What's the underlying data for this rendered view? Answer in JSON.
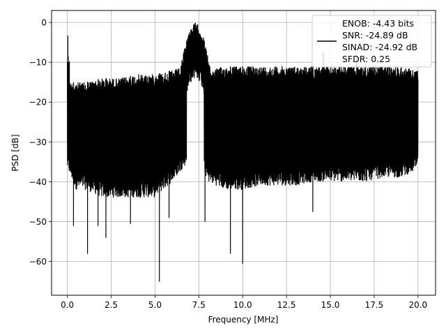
{
  "chart_data": {
    "type": "line",
    "xlabel": "Frequency [MHz]",
    "ylabel": "PSD [dB]",
    "xlim": [
      -0.9,
      21.0
    ],
    "ylim": [
      -68.5,
      3.0
    ],
    "xticks": [
      0.0,
      2.5,
      5.0,
      7.5,
      10.0,
      12.5,
      15.0,
      17.5,
      20.0
    ],
    "xtick_labels": [
      "0.0",
      "2.5",
      "5.0",
      "7.5",
      "10.0",
      "12.5",
      "15.0",
      "17.5",
      "20.0"
    ],
    "yticks": [
      0,
      -10,
      -20,
      -30,
      -40,
      -50,
      -60
    ],
    "ytick_labels": [
      "0",
      "−10",
      "−20",
      "−30",
      "−40",
      "−50",
      "−60"
    ],
    "grid": true,
    "legend_position": "top-right",
    "line_color": "#000000",
    "legend_entries": [
      "ENOB: -4.43 bits",
      "SNR: -24.89 dB",
      "SINAD: -24.92 dB",
      "SFDR: 0.25"
    ],
    "series": [
      {
        "x_range": [
          0.0,
          20.0
        ],
        "noise_band": [
          {
            "x": 0.0,
            "top": -15,
            "bottom": -35
          },
          {
            "x": 0.5,
            "top": -15,
            "bottom": -40
          },
          {
            "x": 1.0,
            "top": -15,
            "bottom": -40
          },
          {
            "x": 2.0,
            "top": -14,
            "bottom": -42
          },
          {
            "x": 3.0,
            "top": -14,
            "bottom": -42
          },
          {
            "x": 4.0,
            "top": -13,
            "bottom": -42
          },
          {
            "x": 5.0,
            "top": -13,
            "bottom": -42
          },
          {
            "x": 6.0,
            "top": -12,
            "bottom": -38
          },
          {
            "x": 6.7,
            "top": -11,
            "bottom": -34
          },
          {
            "x": 7.5,
            "top": -10,
            "bottom": -31
          },
          {
            "x": 8.0,
            "top": -12,
            "bottom": -38
          },
          {
            "x": 9.0,
            "top": -11,
            "bottom": -40
          },
          {
            "x": 10.0,
            "top": -11,
            "bottom": -40
          },
          {
            "x": 11.0,
            "top": -11,
            "bottom": -39
          },
          {
            "x": 12.0,
            "top": -11,
            "bottom": -39
          },
          {
            "x": 13.0,
            "top": -11,
            "bottom": -39
          },
          {
            "x": 14.0,
            "top": -11,
            "bottom": -38
          },
          {
            "x": 15.0,
            "top": -11,
            "bottom": -38
          },
          {
            "x": 16.0,
            "top": -11,
            "bottom": -38
          },
          {
            "x": 17.0,
            "top": -11,
            "bottom": -38
          },
          {
            "x": 18.0,
            "top": -11,
            "bottom": -37
          },
          {
            "x": 19.0,
            "top": -11,
            "bottom": -37
          },
          {
            "x": 20.0,
            "top": -12,
            "bottom": -35
          }
        ],
        "peak": {
          "x": 7.3,
          "y": -0.2
        },
        "dc_spike": {
          "x": 0.03,
          "y": -3.3
        },
        "deep_notches": [
          {
            "x": 0.35,
            "y": -51
          },
          {
            "x": 1.15,
            "y": -58
          },
          {
            "x": 1.75,
            "y": -51
          },
          {
            "x": 2.2,
            "y": -54
          },
          {
            "x": 3.6,
            "y": -50.5
          },
          {
            "x": 5.25,
            "y": -65
          },
          {
            "x": 5.8,
            "y": -49
          },
          {
            "x": 7.85,
            "y": -50
          },
          {
            "x": 9.3,
            "y": -58
          },
          {
            "x": 10.0,
            "y": -60.5
          },
          {
            "x": 14.0,
            "y": -47.5
          }
        ],
        "upper_outliers": [
          {
            "x": 14.6,
            "y": -7.5
          },
          {
            "x": 16.5,
            "y": -8.0
          }
        ]
      }
    ]
  }
}
